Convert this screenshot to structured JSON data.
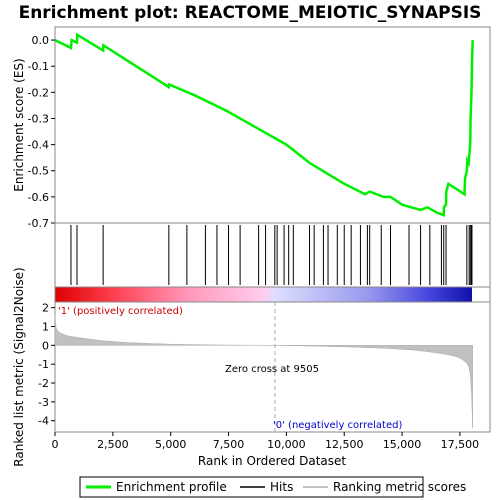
{
  "chart_data": {
    "type": "line",
    "title": "Enrichment plot: REACTOME_MEIOTIC_SYNAPSIS",
    "top_panel": {
      "ylabel": "Enrichment score (ES)",
      "ylim": [
        -0.7,
        0.05
      ],
      "yticks": [
        "0.0",
        "-0.1",
        "-0.2",
        "-0.3",
        "-0.4",
        "-0.5",
        "-0.6",
        "-0.7"
      ],
      "ytick_values": [
        0.0,
        -0.1,
        -0.2,
        -0.3,
        -0.4,
        -0.5,
        -0.6,
        -0.7
      ],
      "series": [
        {
          "name": "Enrichment profile",
          "color": "#00ee00",
          "x": [
            0,
            690,
            720,
            950,
            960,
            2080,
            2090,
            4920,
            4930,
            6000,
            7400,
            8800,
            10000,
            11000,
            12500,
            13400,
            13600,
            13900,
            14200,
            14500,
            15000,
            15400,
            15800,
            16100,
            16500,
            16800,
            16810,
            16900,
            16910,
            17000,
            17700,
            17720,
            17800,
            17820,
            17880,
            17950,
            17960,
            18000,
            18020,
            18050
          ],
          "y": [
            0.0,
            -0.03,
            0.0,
            -0.01,
            0.02,
            -0.04,
            -0.02,
            -0.18,
            -0.17,
            -0.21,
            -0.27,
            -0.34,
            -0.4,
            -0.47,
            -0.55,
            -0.59,
            -0.58,
            -0.59,
            -0.6,
            -0.6,
            -0.63,
            -0.64,
            -0.65,
            -0.64,
            -0.66,
            -0.67,
            -0.64,
            -0.63,
            -0.58,
            -0.55,
            -0.59,
            -0.53,
            -0.5,
            -0.46,
            -0.47,
            -0.39,
            -0.3,
            -0.2,
            -0.1,
            0.0
          ]
        }
      ]
    },
    "hits": {
      "name": "Hits",
      "x": [
        690,
        950,
        2080,
        4920,
        5700,
        6500,
        7000,
        7500,
        8000,
        8800,
        9100,
        9500,
        9600,
        9900,
        10100,
        10300,
        11000,
        11200,
        11600,
        11800,
        12200,
        12500,
        12800,
        13200,
        13500,
        13600,
        14100,
        14500,
        15300,
        15800,
        16200,
        16700,
        16800,
        16900,
        17800,
        17900,
        17950,
        18000,
        18020
      ]
    },
    "bottom_panel": {
      "name": "Ranking metric scores",
      "ylabel": "Ranked list metric (Signal2Noise)",
      "ylim": [
        -4.6,
        2.3
      ],
      "yticks": [
        "2",
        "1",
        "0",
        "-1",
        "-2",
        "-3",
        "-4"
      ],
      "ytick_values": [
        2,
        1,
        0,
        -1,
        -2,
        -3,
        -4
      ],
      "x": [
        0,
        50,
        150,
        300,
        500,
        800,
        1200,
        2000,
        3000,
        4000,
        5000,
        6000,
        7000,
        8000,
        9000,
        9505,
        10500,
        11500,
        12500,
        13500,
        14500,
        15500,
        16000,
        16500,
        17000,
        17400,
        17600,
        17800,
        17900,
        17950,
        18000,
        18050
      ],
      "values": [
        1.6,
        0.9,
        0.72,
        0.62,
        0.52,
        0.45,
        0.38,
        0.25,
        0.16,
        0.1,
        0.06,
        0.04,
        0.02,
        0.01,
        0.005,
        0.0,
        -0.02,
        -0.05,
        -0.08,
        -0.12,
        -0.17,
        -0.25,
        -0.32,
        -0.4,
        -0.5,
        -0.62,
        -0.75,
        -0.95,
        -1.2,
        -1.6,
        -2.5,
        -4.4
      ],
      "annotations": [
        "Zero cross at 9505",
        "'1' (positively correlated)",
        "'0' (negatively correlated)"
      ],
      "zero_cross": 9505
    },
    "xaxis": {
      "label": "Rank in Ordered Dataset",
      "xlim": [
        0,
        18800
      ],
      "ticks": [
        "0",
        "2,500",
        "5,000",
        "7,500",
        "10,000",
        "12,500",
        "15,000",
        "17,500"
      ],
      "tick_values": [
        0,
        2500,
        5000,
        7500,
        10000,
        12500,
        15000,
        17500
      ]
    },
    "legend": {
      "placement": "bottom",
      "entries": [
        {
          "label": "Enrichment profile",
          "color": "#00ee00"
        },
        {
          "label": "Hits",
          "color": "#000000"
        },
        {
          "label": "Ranking metric scores",
          "color": "#c0c0c0"
        }
      ]
    },
    "colors": {
      "positive_annotation": "#cc0000",
      "negative_annotation": "#0000cc",
      "metric_fill": "#c0c0c0"
    },
    "grid": false
  }
}
